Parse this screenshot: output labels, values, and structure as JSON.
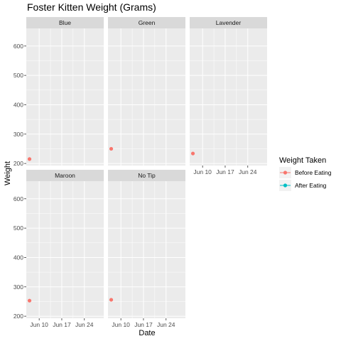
{
  "chart_data": {
    "type": "scatter",
    "title": "Foster Kitten Weight (Grams)",
    "xlabel": "Date",
    "ylabel": "Weight",
    "x_tick_labels": [
      "Jun 10",
      "Jun 17",
      "Jun 24"
    ],
    "x_ticks": [
      "2023-06-10",
      "2023-06-17",
      "2023-06-24"
    ],
    "xlim": [
      "2023-06-06",
      "2023-06-30"
    ],
    "y_ticks": [
      200,
      300,
      400,
      500,
      600
    ],
    "ylim": [
      193,
      660
    ],
    "grid": true,
    "facets": [
      {
        "name": "Blue",
        "points": [
          {
            "x": "2023-06-07",
            "y": 215,
            "series": "Before Eating"
          }
        ]
      },
      {
        "name": "Green",
        "points": [
          {
            "x": "2023-06-07",
            "y": 250,
            "series": "Before Eating"
          }
        ]
      },
      {
        "name": "Lavender",
        "points": [
          {
            "x": "2023-06-07",
            "y": 234,
            "series": "Before Eating"
          }
        ]
      },
      {
        "name": "Maroon",
        "points": [
          {
            "x": "2023-06-07",
            "y": 253,
            "series": "Before Eating"
          }
        ]
      },
      {
        "name": "No Tip",
        "points": [
          {
            "x": "2023-06-07",
            "y": 256,
            "series": "Before Eating"
          }
        ]
      }
    ],
    "legend": {
      "title": "Weight Taken",
      "placement": "right",
      "entries": [
        {
          "label": "Before Eating",
          "color": "#F8766D"
        },
        {
          "label": "After Eating",
          "color": "#00BFC4"
        }
      ]
    },
    "colors": {
      "panel_background": "#EBEBEB",
      "strip_background": "#D9D9D9",
      "grid_major": "#FFFFFF"
    }
  }
}
